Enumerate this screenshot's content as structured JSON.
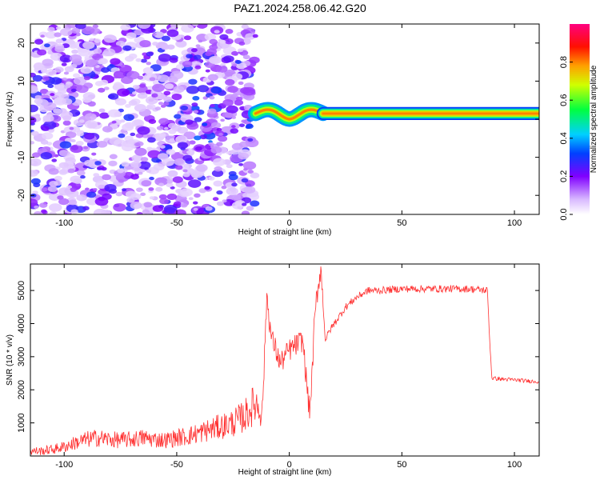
{
  "title": "PAZ1.2024.258.06.42.G20",
  "chart_data": [
    {
      "type": "heatmap",
      "title": "PAZ1.2024.258.06.42.G20",
      "xlabel": "Height of straight line (km)",
      "ylabel": "Frequency (Hz)",
      "xlim": [
        -115,
        111
      ],
      "ylim": [
        -25,
        25
      ],
      "x_ticks": [
        -100,
        -50,
        0,
        50,
        100
      ],
      "y_ticks": [
        -20,
        -10,
        0,
        10,
        20
      ],
      "colorbar": {
        "label": "Normalized spectral amplitude",
        "range": [
          0,
          1
        ],
        "ticks": [
          "0.0",
          "0.2",
          "0.4",
          "0.6",
          "0.8"
        ],
        "tick_values": [
          0,
          0.2,
          0.4,
          0.6,
          0.8
        ],
        "colormap": "rainbow (white-violet-blue-cyan-green-yellow-red-magenta)"
      },
      "features": {
        "noise_region_x": [
          -115,
          -15
        ],
        "noise_amplitude": [
          0.05,
          0.3
        ],
        "signal_transition_x": [
          -15,
          15
        ],
        "signal_line_x": [
          15,
          111
        ],
        "signal_line_freq_hz": 1.5,
        "signal_line_peak_amplitude": 0.8
      }
    },
    {
      "type": "line",
      "xlabel": "Height of straight line (km)",
      "ylabel": "SNR (10 * v/v)",
      "xlim": [
        -115,
        111
      ],
      "ylim": [
        0,
        5800
      ],
      "x_ticks": [
        -100,
        -50,
        0,
        50,
        100
      ],
      "y_ticks": [
        1000,
        2000,
        3000,
        4000,
        5000
      ],
      "color": "#ff3030",
      "series": [
        {
          "x": [
            -115,
            -110,
            -105,
            -100,
            -95,
            -90,
            -85,
            -80,
            -75,
            -70,
            -65,
            -60,
            -55,
            -50,
            -45,
            -40,
            -35,
            -30,
            -25,
            -20,
            -15,
            -12,
            -11,
            -10,
            -9,
            -8,
            -6,
            -4,
            -2,
            0,
            2,
            4,
            6,
            8,
            9,
            10,
            11,
            12,
            14,
            16,
            18,
            20,
            25,
            30,
            35,
            40,
            50,
            60,
            70,
            80,
            88,
            89,
            90,
            95,
            100,
            105,
            111
          ],
          "y": [
            150,
            150,
            200,
            280,
            400,
            500,
            550,
            500,
            480,
            500,
            550,
            500,
            480,
            550,
            600,
            700,
            800,
            900,
            1000,
            1200,
            1600,
            1400,
            3000,
            4900,
            4200,
            3600,
            3200,
            2800,
            3000,
            3200,
            3300,
            3400,
            3500,
            2000,
            1300,
            2300,
            3800,
            4700,
            5700,
            3500,
            3800,
            4000,
            4500,
            4800,
            5000,
            5000,
            5050,
            5050,
            5050,
            5050,
            5000,
            3500,
            2350,
            2320,
            2300,
            2270,
            2250
          ]
        }
      ]
    }
  ]
}
